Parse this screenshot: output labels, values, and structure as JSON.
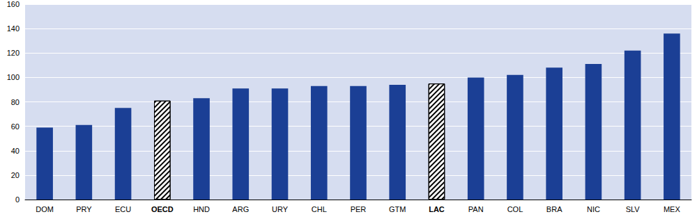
{
  "chart_data": {
    "type": "bar",
    "categories": [
      "DOM",
      "PRY",
      "ECU",
      "OECD",
      "HND",
      "ARG",
      "URY",
      "CHL",
      "PER",
      "GTM",
      "LAC",
      "PAN",
      "COL",
      "BRA",
      "NIC",
      "SLV",
      "MEX"
    ],
    "values": [
      59,
      61,
      75,
      81,
      83,
      91,
      91,
      93,
      93,
      94,
      95,
      100,
      102,
      108,
      111,
      122,
      136
    ],
    "colors": [
      "#1b3f95",
      "#1b3f95",
      "#1b3f95",
      "#ffffff",
      "#1b3f95",
      "#1b3f95",
      "#1b3f95",
      "#1b3f95",
      "#1b3f95",
      "#1b3f95",
      "#ffffff",
      "#1b3f95",
      "#1b3f95",
      "#1b3f95",
      "#1b3f95",
      "#1b3f95",
      "#1b3f95"
    ],
    "ylim": [
      0,
      160
    ],
    "yticks": [
      0,
      20,
      40,
      60,
      80,
      100,
      120,
      140,
      160
    ],
    "grid": true
  }
}
